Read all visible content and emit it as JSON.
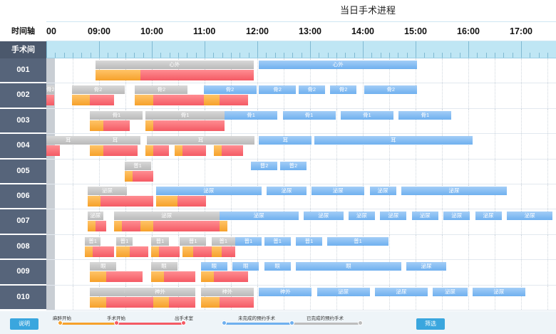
{
  "title": "当日手术进程",
  "header": {
    "time_axis_label": "时间轴",
    "room_label": "手术间"
  },
  "timeline": {
    "start_hour": 8.0,
    "end_hour": 17.6,
    "hours": [
      {
        "label": "00",
        "h": 8.0
      },
      {
        "label": "09:00",
        "h": 9.0
      },
      {
        "label": "10:00",
        "h": 10.0
      },
      {
        "label": "11:00",
        "h": 11.0
      },
      {
        "label": "12:00",
        "h": 12.0
      },
      {
        "label": "13:00",
        "h": 13.0
      },
      {
        "label": "14:00",
        "h": 14.0
      },
      {
        "label": "15:00",
        "h": 15.0
      },
      {
        "label": "16:00",
        "h": 16.0
      },
      {
        "label": "17:00",
        "h": 17.0
      }
    ]
  },
  "rooms": [
    {
      "id": "001",
      "bars": [
        {
          "type": "grey",
          "label": "心外",
          "s": 8.93,
          "e": 11.93,
          "lane": 0
        },
        {
          "type": "blue",
          "label": "心外",
          "s": 12.03,
          "e": 15.03,
          "lane": 0
        },
        {
          "type": "orange",
          "label": "",
          "s": 8.93,
          "e": 9.78,
          "lane": 1
        },
        {
          "type": "red",
          "label": "",
          "s": 9.78,
          "e": 11.93,
          "lane": 1
        }
      ]
    },
    {
      "id": "002",
      "bars": [
        {
          "type": "grey",
          "label": "骨2",
          "s": 8.0,
          "e": 8.15,
          "lane": 0
        },
        {
          "type": "grey",
          "label": "骨2",
          "s": 8.48,
          "e": 9.48,
          "lane": 0
        },
        {
          "type": "grey",
          "label": "骨2",
          "s": 9.68,
          "e": 10.68,
          "lane": 0
        },
        {
          "type": "blue",
          "label": "骨2",
          "s": 10.98,
          "e": 11.98,
          "lane": 0
        },
        {
          "type": "blue",
          "label": "骨2",
          "s": 12.03,
          "e": 12.73,
          "lane": 0
        },
        {
          "type": "blue",
          "label": "骨2",
          "s": 12.78,
          "e": 13.28,
          "lane": 0
        },
        {
          "type": "blue",
          "label": "骨2",
          "s": 13.38,
          "e": 13.88,
          "lane": 0
        },
        {
          "type": "blue",
          "label": "骨2",
          "s": 14.03,
          "e": 15.03,
          "lane": 0
        },
        {
          "type": "red",
          "label": "",
          "s": 8.0,
          "e": 8.15,
          "lane": 1
        },
        {
          "type": "orange",
          "label": "",
          "s": 8.48,
          "e": 8.83,
          "lane": 1
        },
        {
          "type": "red",
          "label": "",
          "s": 8.83,
          "e": 9.28,
          "lane": 1
        },
        {
          "type": "orange",
          "label": "",
          "s": 9.68,
          "e": 10.03,
          "lane": 1
        },
        {
          "type": "red",
          "label": "",
          "s": 10.03,
          "e": 11.03,
          "lane": 1
        },
        {
          "type": "orange",
          "label": "",
          "s": 10.98,
          "e": 11.28,
          "lane": 1
        },
        {
          "type": "red",
          "label": "",
          "s": 11.28,
          "e": 11.83,
          "lane": 1
        }
      ]
    },
    {
      "id": "003",
      "bars": [
        {
          "type": "grey",
          "label": "骨1",
          "s": 8.83,
          "e": 9.83,
          "lane": 0
        },
        {
          "type": "grey",
          "label": "骨1",
          "s": 9.88,
          "e": 11.38,
          "lane": 0
        },
        {
          "type": "blue",
          "label": "骨1",
          "s": 11.38,
          "e": 12.38,
          "lane": 0
        },
        {
          "type": "blue",
          "label": "骨1",
          "s": 12.48,
          "e": 13.48,
          "lane": 0
        },
        {
          "type": "blue",
          "label": "骨1",
          "s": 13.58,
          "e": 14.58,
          "lane": 0
        },
        {
          "type": "blue",
          "label": "骨1",
          "s": 14.68,
          "e": 15.68,
          "lane": 0
        },
        {
          "type": "orange",
          "label": "",
          "s": 8.83,
          "e": 9.08,
          "lane": 1
        },
        {
          "type": "red",
          "label": "",
          "s": 9.08,
          "e": 9.58,
          "lane": 1
        },
        {
          "type": "orange",
          "label": "",
          "s": 9.88,
          "e": 10.03,
          "lane": 1
        },
        {
          "type": "red",
          "label": "",
          "s": 10.03,
          "e": 11.38,
          "lane": 1
        }
      ]
    },
    {
      "id": "004",
      "bars": [
        {
          "type": "grey",
          "label": "耳",
          "s": 8.0,
          "e": 8.83,
          "lane": 0
        },
        {
          "type": "grey",
          "label": "耳",
          "s": 8.83,
          "e": 9.78,
          "lane": 0
        },
        {
          "type": "grey",
          "label": "耳",
          "s": 9.9,
          "e": 11.95,
          "lane": 0
        },
        {
          "type": "blue",
          "label": "耳",
          "s": 12.03,
          "e": 13.03,
          "lane": 0
        },
        {
          "type": "blue",
          "label": "耳",
          "s": 13.08,
          "e": 16.08,
          "lane": 0
        },
        {
          "type": "red",
          "label": "",
          "s": 8.0,
          "e": 8.25,
          "lane": 1
        },
        {
          "type": "orange",
          "label": "",
          "s": 8.83,
          "e": 9.08,
          "lane": 1
        },
        {
          "type": "red",
          "label": "",
          "s": 9.08,
          "e": 9.73,
          "lane": 1
        },
        {
          "type": "orange",
          "label": "",
          "s": 9.88,
          "e": 10.03,
          "lane": 1
        },
        {
          "type": "red",
          "label": "",
          "s": 10.03,
          "e": 10.33,
          "lane": 1
        },
        {
          "type": "orange",
          "label": "",
          "s": 10.43,
          "e": 10.58,
          "lane": 1
        },
        {
          "type": "red",
          "label": "",
          "s": 10.58,
          "e": 11.03,
          "lane": 1
        },
        {
          "type": "orange",
          "label": "",
          "s": 11.18,
          "e": 11.33,
          "lane": 1
        },
        {
          "type": "red",
          "label": "",
          "s": 11.33,
          "e": 11.73,
          "lane": 1
        }
      ]
    },
    {
      "id": "005",
      "bars": [
        {
          "type": "grey",
          "label": "普1",
          "s": 9.48,
          "e": 9.98,
          "lane": 0
        },
        {
          "type": "blue",
          "label": "普2",
          "s": 11.88,
          "e": 12.38,
          "lane": 0
        },
        {
          "type": "blue",
          "label": "普2",
          "s": 12.43,
          "e": 12.93,
          "lane": 0
        },
        {
          "type": "orange",
          "label": "",
          "s": 9.48,
          "e": 9.63,
          "lane": 1
        },
        {
          "type": "red",
          "label": "",
          "s": 9.63,
          "e": 10.03,
          "lane": 1
        }
      ]
    },
    {
      "id": "006",
      "bars": [
        {
          "type": "grey",
          "label": "泌尿",
          "s": 8.78,
          "e": 9.53,
          "lane": 0
        },
        {
          "type": "blue",
          "label": "泌尿",
          "s": 10.08,
          "e": 12.08,
          "lane": 0
        },
        {
          "type": "blue",
          "label": "泌尿",
          "s": 12.18,
          "e": 12.93,
          "lane": 0
        },
        {
          "type": "blue",
          "label": "泌尿",
          "s": 13.03,
          "e": 14.03,
          "lane": 0
        },
        {
          "type": "blue",
          "label": "泌尿",
          "s": 14.13,
          "e": 14.63,
          "lane": 0
        },
        {
          "type": "blue",
          "label": "泌尿",
          "s": 14.73,
          "e": 16.73,
          "lane": 0
        },
        {
          "type": "orange",
          "label": "",
          "s": 8.78,
          "e": 9.03,
          "lane": 1
        },
        {
          "type": "red",
          "label": "",
          "s": 9.03,
          "e": 10.03,
          "lane": 1
        },
        {
          "type": "orange",
          "label": "",
          "s": 10.08,
          "e": 10.48,
          "lane": 1
        },
        {
          "type": "red",
          "label": "",
          "s": 10.48,
          "e": 11.03,
          "lane": 1
        }
      ]
    },
    {
      "id": "007",
      "bars": [
        {
          "type": "grey",
          "label": "泌尿",
          "s": 8.78,
          "e": 9.08,
          "lane": 0
        },
        {
          "type": "grey",
          "label": "泌尿",
          "s": 9.28,
          "e": 11.28,
          "lane": 0
        },
        {
          "type": "blue",
          "label": "泌尿",
          "s": 11.28,
          "e": 12.78,
          "lane": 0
        },
        {
          "type": "blue",
          "label": "泌尿",
          "s": 12.88,
          "e": 13.63,
          "lane": 0
        },
        {
          "type": "blue",
          "label": "泌尿",
          "s": 13.73,
          "e": 14.23,
          "lane": 0
        },
        {
          "type": "blue",
          "label": "泌尿",
          "s": 14.33,
          "e": 14.83,
          "lane": 0
        },
        {
          "type": "blue",
          "label": "泌尿",
          "s": 14.93,
          "e": 15.43,
          "lane": 0
        },
        {
          "type": "blue",
          "label": "泌尿",
          "s": 15.53,
          "e": 16.03,
          "lane": 0
        },
        {
          "type": "blue",
          "label": "泌尿",
          "s": 16.13,
          "e": 16.63,
          "lane": 0
        },
        {
          "type": "blue",
          "label": "泌尿",
          "s": 16.73,
          "e": 17.6,
          "lane": 0
        },
        {
          "type": "orange",
          "label": "",
          "s": 8.78,
          "e": 8.93,
          "lane": 1
        },
        {
          "type": "red",
          "label": "",
          "s": 8.93,
          "e": 9.13,
          "lane": 1
        },
        {
          "type": "orange",
          "label": "",
          "s": 9.28,
          "e": 9.43,
          "lane": 1
        },
        {
          "type": "red",
          "label": "",
          "s": 9.43,
          "e": 9.78,
          "lane": 1
        },
        {
          "type": "orange",
          "label": "",
          "s": 9.78,
          "e": 10.03,
          "lane": 1
        },
        {
          "type": "red",
          "label": "",
          "s": 10.03,
          "e": 11.28,
          "lane": 1
        },
        {
          "type": "orange",
          "label": "",
          "s": 11.28,
          "e": 11.43,
          "lane": 1
        }
      ]
    },
    {
      "id": "008",
      "bars": [
        {
          "type": "grey",
          "label": "普1",
          "s": 8.73,
          "e": 9.03,
          "lane": 0
        },
        {
          "type": "grey",
          "label": "普1",
          "s": 9.33,
          "e": 9.63,
          "lane": 0
        },
        {
          "type": "grey",
          "label": "普1",
          "s": 9.98,
          "e": 10.33,
          "lane": 0
        },
        {
          "type": "grey",
          "label": "普1",
          "s": 10.53,
          "e": 11.03,
          "lane": 0
        },
        {
          "type": "grey",
          "label": "普1",
          "s": 11.13,
          "e": 11.58,
          "lane": 0
        },
        {
          "type": "blue",
          "label": "普1",
          "s": 11.58,
          "e": 12.08,
          "lane": 0
        },
        {
          "type": "blue",
          "label": "普1",
          "s": 12.13,
          "e": 12.63,
          "lane": 0
        },
        {
          "type": "blue",
          "label": "普1",
          "s": 12.73,
          "e": 13.23,
          "lane": 0
        },
        {
          "type": "blue",
          "label": "普1",
          "s": 13.33,
          "e": 14.48,
          "lane": 0
        },
        {
          "type": "orange",
          "label": "",
          "s": 8.73,
          "e": 8.88,
          "lane": 1
        },
        {
          "type": "red",
          "label": "",
          "s": 8.88,
          "e": 9.28,
          "lane": 1
        },
        {
          "type": "orange",
          "label": "",
          "s": 9.33,
          "e": 9.58,
          "lane": 1
        },
        {
          "type": "red",
          "label": "",
          "s": 9.58,
          "e": 9.93,
          "lane": 1
        },
        {
          "type": "orange",
          "label": "",
          "s": 9.98,
          "e": 10.13,
          "lane": 1
        },
        {
          "type": "red",
          "label": "",
          "s": 10.13,
          "e": 10.53,
          "lane": 1
        },
        {
          "type": "orange",
          "label": "",
          "s": 10.58,
          "e": 10.78,
          "lane": 1
        },
        {
          "type": "red",
          "label": "",
          "s": 10.78,
          "e": 11.13,
          "lane": 1
        },
        {
          "type": "orange",
          "label": "",
          "s": 11.13,
          "e": 11.33,
          "lane": 1
        },
        {
          "type": "red",
          "label": "",
          "s": 11.33,
          "e": 11.58,
          "lane": 1
        }
      ]
    },
    {
      "id": "009",
      "bars": [
        {
          "type": "grey",
          "label": "眼",
          "s": 8.83,
          "e": 9.33,
          "lane": 0
        },
        {
          "type": "grey",
          "label": "眼",
          "s": 9.98,
          "e": 10.48,
          "lane": 0
        },
        {
          "type": "blue",
          "label": "眼",
          "s": 10.93,
          "e": 11.43,
          "lane": 0
        },
        {
          "type": "blue",
          "label": "眼",
          "s": 11.53,
          "e": 12.03,
          "lane": 0
        },
        {
          "type": "blue",
          "label": "眼",
          "s": 12.13,
          "e": 12.63,
          "lane": 0
        },
        {
          "type": "blue",
          "label": "眼",
          "s": 12.73,
          "e": 14.73,
          "lane": 0
        },
        {
          "type": "blue",
          "label": "泌尿",
          "s": 14.83,
          "e": 15.58,
          "lane": 0
        },
        {
          "type": "orange",
          "label": "",
          "s": 8.83,
          "e": 9.13,
          "lane": 1
        },
        {
          "type": "red",
          "label": "",
          "s": 9.13,
          "e": 9.83,
          "lane": 1
        },
        {
          "type": "orange",
          "label": "",
          "s": 9.98,
          "e": 10.23,
          "lane": 1
        },
        {
          "type": "red",
          "label": "",
          "s": 10.23,
          "e": 10.83,
          "lane": 1
        },
        {
          "type": "orange",
          "label": "",
          "s": 10.93,
          "e": 11.18,
          "lane": 1
        },
        {
          "type": "red",
          "label": "",
          "s": 11.18,
          "e": 11.83,
          "lane": 1
        }
      ]
    },
    {
      "id": "010",
      "bars": [
        {
          "type": "grey",
          "label": "神外",
          "s": 8.83,
          "e": 10.33,
          "lane": 0
        },
        {
          "type": "grey",
          "label": "神外",
          "s": 9.48,
          "e": 10.83,
          "lane": 0
        },
        {
          "type": "grey",
          "label": "神外",
          "s": 10.93,
          "e": 11.93,
          "lane": 0
        },
        {
          "type": "blue",
          "label": "神外",
          "s": 12.03,
          "e": 13.03,
          "lane": 0
        },
        {
          "type": "blue",
          "label": "泌尿",
          "s": 13.13,
          "e": 14.13,
          "lane": 0
        },
        {
          "type": "blue",
          "label": "泌尿",
          "s": 14.23,
          "e": 15.23,
          "lane": 0
        },
        {
          "type": "blue",
          "label": "泌尿",
          "s": 15.33,
          "e": 15.98,
          "lane": 0
        },
        {
          "type": "blue",
          "label": "泌尿",
          "s": 16.08,
          "e": 17.08,
          "lane": 0
        },
        {
          "type": "orange",
          "label": "",
          "s": 8.83,
          "e": 9.13,
          "lane": 1
        },
        {
          "type": "red",
          "label": "",
          "s": 9.13,
          "e": 10.03,
          "lane": 1
        },
        {
          "type": "orange",
          "label": "",
          "s": 10.03,
          "e": 10.33,
          "lane": 1
        },
        {
          "type": "red",
          "label": "",
          "s": 10.33,
          "e": 10.83,
          "lane": 1
        },
        {
          "type": "orange",
          "label": "",
          "s": 10.93,
          "e": 11.28,
          "lane": 1
        },
        {
          "type": "red",
          "label": "",
          "s": 11.28,
          "e": 11.93,
          "lane": 1
        }
      ]
    }
  ],
  "footer": {
    "explain_label": "说明",
    "filter_label": "筛选",
    "legend": {
      "anesthesia_start": "麻醉开始",
      "surgery_start": "手术开始",
      "leave_room": "出手术室",
      "not_done": "未完成的预约手术",
      "done": "已完成的预约手术"
    }
  },
  "colors": {
    "room_label_bg": "#56647a",
    "ruler_bg": "#bfe6f4",
    "grey_bar": "#bdbdbd",
    "blue_bar": "#6fb0ef",
    "orange_bar": "#f6a12b",
    "red_bar": "#f45a64",
    "button": "#3aa6de"
  }
}
